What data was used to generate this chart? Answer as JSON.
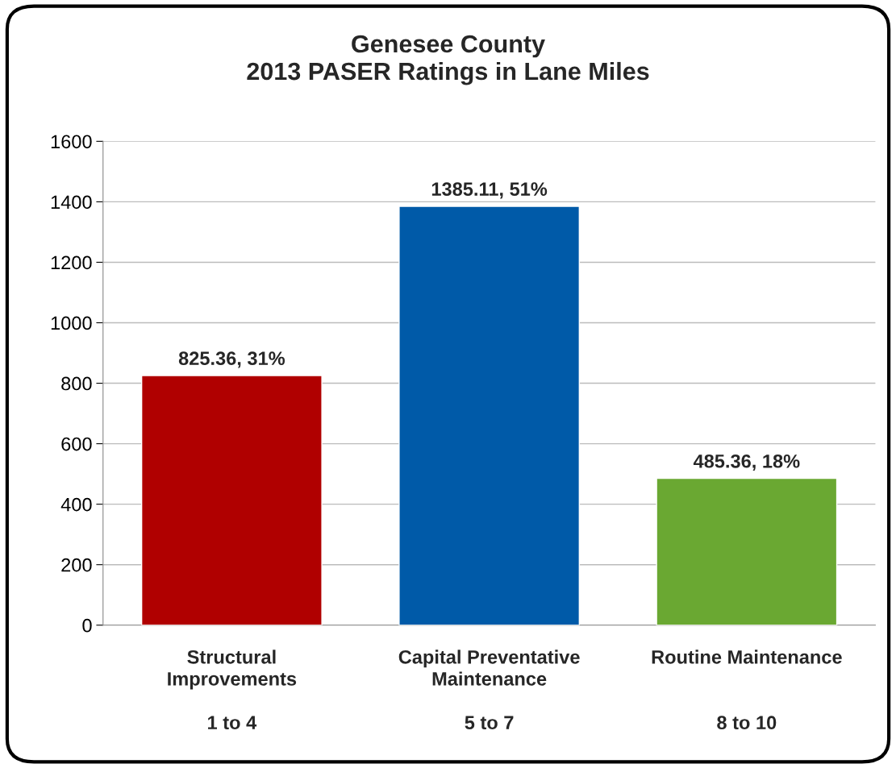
{
  "chart_data": {
    "type": "bar",
    "title": "Genesee County\n2013 PASER Ratings in Lane Miles",
    "categories": [
      "Structural\nImprovements\n\n1 to 4",
      "Capital Preventative\nMaintenance\n\n5 to 7",
      "Routine Maintenance\n\n\n8 to 10"
    ],
    "values": [
      825.36,
      1385.11,
      485.36
    ],
    "colors": [
      "#b00000",
      "#005aa8",
      "#6aa832"
    ],
    "value_labels": [
      "825.36, 31%",
      "1385.11, 51%",
      "485.36, 18%"
    ],
    "ylim": [
      0,
      1600
    ],
    "yticks": [
      0,
      200,
      400,
      600,
      800,
      1000,
      1200,
      1400,
      1600
    ],
    "grid": "y"
  }
}
